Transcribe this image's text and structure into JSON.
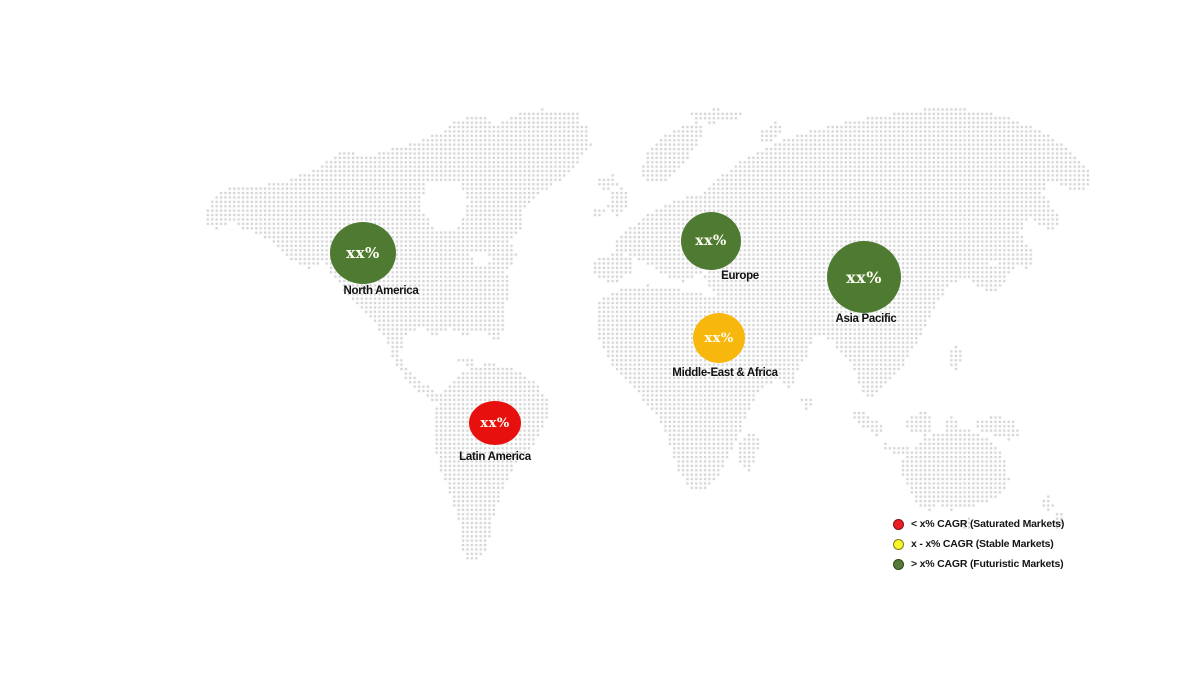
{
  "page": {
    "background": "#ffffff"
  },
  "map": {
    "dot_color": "#c9c9c9",
    "value_text_color": "#fdfdf2"
  },
  "regions": [
    {
      "name": "North America",
      "value_label": "xx%",
      "color": "#4e7b31",
      "category": "futuristic"
    },
    {
      "name": "Europe",
      "value_label": "xx%",
      "color": "#4e7b31",
      "category": "futuristic"
    },
    {
      "name": "Asia Pacific",
      "value_label": "xx%",
      "color": "#4e7b31",
      "category": "futuristic"
    },
    {
      "name": "Middle-East & Africa",
      "value_label": "xx%",
      "color": "#f8b70d",
      "category": "stable"
    },
    {
      "name": "Latin America",
      "value_label": "xx%",
      "color": "#e8100e",
      "category": "saturated"
    }
  ],
  "legend": {
    "items": [
      {
        "label": "< x% CAGR (Saturated Markets)",
        "color": "#ed1c24",
        "border": "#7a1416"
      },
      {
        "label": "x - x% CAGR (Stable Markets)",
        "color": "#f8f829",
        "border": "#7c7c1e"
      },
      {
        "label": "> x% CAGR (Futuristic Markets)",
        "color": "#567a38",
        "border": "#2c4718"
      }
    ]
  }
}
